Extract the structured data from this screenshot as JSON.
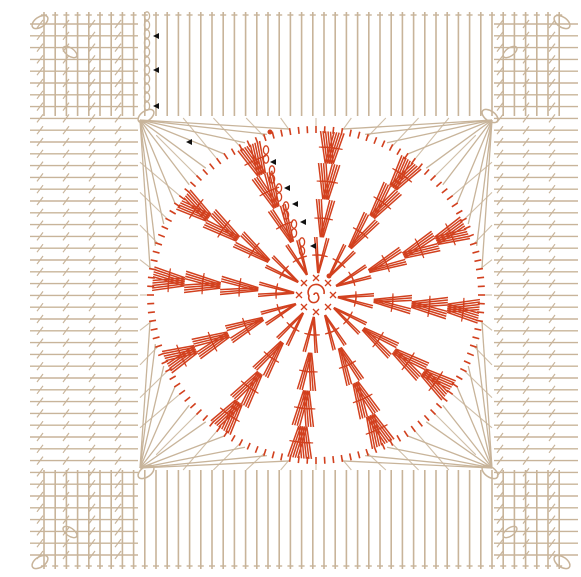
{
  "diagram": {
    "kind": "crochet-chart",
    "motif": "circle-in-square",
    "colors": {
      "background": "#ffffff",
      "square_stitches": "#c8b49a",
      "circle_stitches": "#d2401e",
      "markers": "#111111"
    },
    "stitch_symbols": {
      "circle_start": "magic-ring",
      "circle_rows": "double-crochet-v",
      "square_rows": "double-crochet-columns",
      "row_start": "chain-stitches"
    }
  }
}
